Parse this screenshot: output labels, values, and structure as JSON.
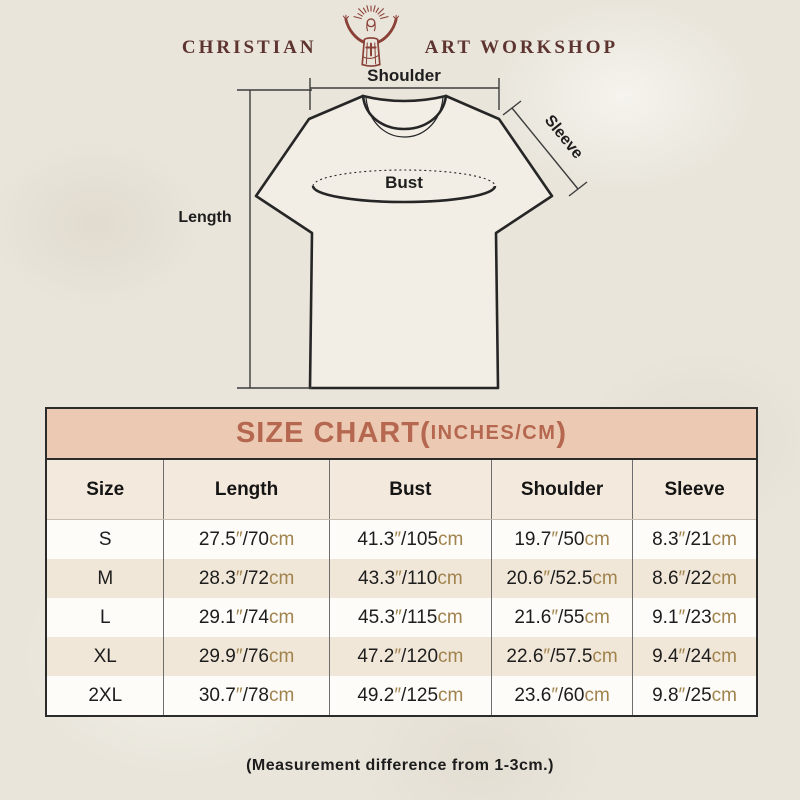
{
  "brand": {
    "name_left": "CHRISTIAN",
    "name_right": "ART WORKSHOP",
    "logo_icon": "jesus-with-raised-arms-icon",
    "logo_color": "#8a4037",
    "text_color": "#5e3430"
  },
  "diagram": {
    "shoulder": "Shoulder",
    "sleeve": "Sleeve",
    "bust": "Bust",
    "length": "Length"
  },
  "size_chart": {
    "title": "SIZE CHART",
    "paren_open": "(",
    "units": "INCHES/CM",
    "paren_close": ")",
    "columns": [
      "Size",
      "Length",
      "Bust",
      "Shoulder",
      "Sleeve"
    ],
    "unit_format": {
      "inch_mark": "″",
      "separator": "/",
      "cm_suffix": "cm"
    },
    "rows": [
      {
        "size": "S",
        "measurements": [
          [
            "27.5",
            "70"
          ],
          [
            "41.3",
            "105"
          ],
          [
            "19.7",
            "50"
          ],
          [
            "8.3",
            "21"
          ]
        ]
      },
      {
        "size": "M",
        "measurements": [
          [
            "28.3",
            "72"
          ],
          [
            "43.3",
            "110"
          ],
          [
            "20.6",
            "52.5"
          ],
          [
            "8.6",
            "22"
          ]
        ]
      },
      {
        "size": "L",
        "measurements": [
          [
            "29.1",
            "74"
          ],
          [
            "45.3",
            "115"
          ],
          [
            "21.6",
            "55"
          ],
          [
            "9.1",
            "23"
          ]
        ]
      },
      {
        "size": "XL",
        "measurements": [
          [
            "29.9",
            "76"
          ],
          [
            "47.2",
            "120"
          ],
          [
            "22.6",
            "57.5"
          ],
          [
            "9.4",
            "24"
          ]
        ]
      },
      {
        "size": "2XL",
        "measurements": [
          [
            "30.7",
            "78"
          ],
          [
            "49.2",
            "125"
          ],
          [
            "23.6",
            "60"
          ],
          [
            "9.8",
            "25"
          ]
        ]
      }
    ],
    "colors": {
      "band_background": "#ebc9b2",
      "band_text": "#b5674f",
      "header_row_background": "#f3e9dc",
      "alt_row_background": "#f1e7d9",
      "unit_text": "#a0834d",
      "border": "#2b2b2b"
    }
  },
  "footer": {
    "note": "(Measurement difference from 1-3cm.)"
  }
}
